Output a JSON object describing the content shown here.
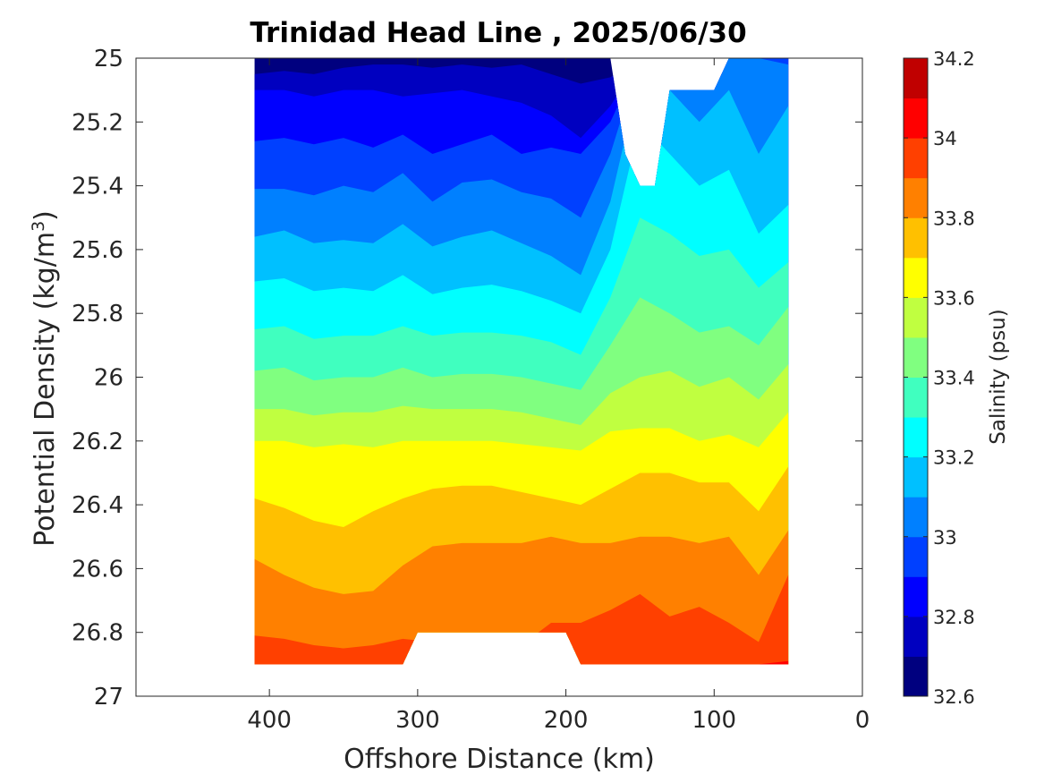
{
  "chart_data": {
    "type": "heatmap",
    "subtype": "filled-contour",
    "title": "Trinidad Head Line , 2025/06/30",
    "xlabel": "Offshore Distance (km)",
    "ylabel_main": "Potential Density (kg/m",
    "ylabel_sup": "3",
    "ylabel_close": ")",
    "colorbar_label": "Salinity (psu)",
    "x_reversed": true,
    "y_reversed": true,
    "xlim": [
      0,
      490
    ],
    "ylim": [
      25,
      27
    ],
    "x_ticks": [
      400,
      300,
      200,
      100,
      0
    ],
    "y_ticks": [
      25,
      25.2,
      25.4,
      25.6,
      25.8,
      26,
      26.2,
      26.4,
      26.6,
      26.8,
      27
    ],
    "y_tick_labels": [
      "25",
      "25.2",
      "25.4",
      "25.6",
      "25.8",
      "26",
      "26.2",
      "26.4",
      "26.6",
      "26.8",
      "27"
    ],
    "colorbar_range": [
      32.6,
      34.2
    ],
    "colorbar_ticks": [
      "34.2",
      "34",
      "33.8",
      "33.6",
      "33.4",
      "33.2",
      "33",
      "32.8",
      "32.6"
    ],
    "colorbar_tick_values": [
      34.2,
      34,
      33.8,
      33.6,
      33.4,
      33.2,
      33,
      32.8,
      32.6
    ],
    "contour_step": 0.1,
    "colormap": [
      "#00007F",
      "#0000C0",
      "#0000FF",
      "#0040FF",
      "#0080FF",
      "#00C0FF",
      "#00FFFF",
      "#40FFBF",
      "#80FF80",
      "#C0FF40",
      "#FFFF00",
      "#FFC000",
      "#FF8000",
      "#FF4000",
      "#FF0000",
      "#C00000"
    ],
    "x_stations_km": [
      410,
      390,
      370,
      350,
      330,
      310,
      290,
      270,
      250,
      230,
      210,
      190,
      170,
      150,
      130,
      110,
      90,
      70,
      50
    ],
    "station_depth_limits": [
      {
        "x": 410,
        "y_min": 25.0,
        "y_max": 26.9
      },
      {
        "x": 390,
        "y_min": 25.0,
        "y_max": 26.9
      },
      {
        "x": 370,
        "y_min": 25.0,
        "y_max": 26.9
      },
      {
        "x": 350,
        "y_min": 25.0,
        "y_max": 26.9
      },
      {
        "x": 330,
        "y_min": 25.0,
        "y_max": 26.9
      },
      {
        "x": 310,
        "y_min": 25.0,
        "y_max": 26.9
      },
      {
        "x": 300,
        "y_min": 25.0,
        "y_max": 26.8
      },
      {
        "x": 200,
        "y_min": 25.0,
        "y_max": 26.8
      },
      {
        "x": 190,
        "y_min": 25.0,
        "y_max": 26.9
      },
      {
        "x": 170,
        "y_min": 25.0,
        "y_max": 26.9
      },
      {
        "x": 160,
        "y_min": 25.3,
        "y_max": 26.9
      },
      {
        "x": 150,
        "y_min": 25.4,
        "y_max": 26.9
      },
      {
        "x": 140,
        "y_min": 25.4,
        "y_max": 26.9
      },
      {
        "x": 130,
        "y_min": 25.1,
        "y_max": 26.9
      },
      {
        "x": 100,
        "y_min": 25.1,
        "y_max": 26.9
      },
      {
        "x": 90,
        "y_min": 25.0,
        "y_max": 26.9
      },
      {
        "x": 50,
        "y_min": 25.0,
        "y_max": 26.9
      }
    ],
    "contour_bands_depth": [
      {
        "level": 32.7,
        "y": [
          25.05,
          25.04,
          25.05,
          25.03,
          25.02,
          25.02,
          25.03,
          25.02,
          25.03,
          25.02,
          25.05,
          25.08,
          25.06,
          25.0,
          25.0,
          25.0,
          25.0,
          25.0,
          25.0
        ]
      },
      {
        "level": 32.8,
        "y": [
          25.1,
          25.1,
          25.12,
          25.1,
          25.1,
          25.12,
          25.11,
          25.1,
          25.12,
          25.14,
          25.18,
          25.25,
          25.15,
          25.0,
          25.0,
          25.0,
          25.0,
          25.0,
          25.0
        ]
      },
      {
        "level": 32.9,
        "y": [
          25.26,
          25.25,
          25.27,
          25.25,
          25.28,
          25.24,
          25.3,
          25.27,
          25.24,
          25.3,
          25.28,
          25.3,
          25.2,
          25.0,
          25.0,
          25.0,
          25.0,
          25.0,
          25.0
        ]
      },
      {
        "level": 33.0,
        "y": [
          25.41,
          25.41,
          25.43,
          25.4,
          25.42,
          25.36,
          25.45,
          25.39,
          25.38,
          25.42,
          25.44,
          25.5,
          25.3,
          25.0,
          25.0,
          25.0,
          25.0,
          25.0,
          25.02
        ]
      },
      {
        "level": 33.1,
        "y": [
          25.56,
          25.54,
          25.58,
          25.57,
          25.58,
          25.52,
          25.59,
          25.56,
          25.54,
          25.58,
          25.62,
          25.68,
          25.45,
          25.05,
          25.1,
          25.2,
          25.1,
          25.3,
          25.15
        ]
      },
      {
        "level": 33.2,
        "y": [
          25.7,
          25.69,
          25.73,
          25.72,
          25.73,
          25.68,
          25.74,
          25.72,
          25.71,
          25.73,
          25.76,
          25.8,
          25.6,
          25.2,
          25.3,
          25.4,
          25.35,
          25.55,
          25.46
        ]
      },
      {
        "level": 33.3,
        "y": [
          25.85,
          25.84,
          25.88,
          25.87,
          25.87,
          25.84,
          25.87,
          25.86,
          25.86,
          25.87,
          25.89,
          25.93,
          25.75,
          25.5,
          25.55,
          25.62,
          25.6,
          25.72,
          25.64
        ]
      },
      {
        "level": 33.4,
        "y": [
          25.98,
          25.97,
          26.01,
          26.0,
          26.0,
          25.97,
          26.0,
          25.99,
          25.99,
          26.0,
          26.02,
          26.04,
          25.9,
          25.75,
          25.8,
          25.86,
          25.84,
          25.9,
          25.78
        ]
      },
      {
        "level": 33.5,
        "y": [
          26.1,
          26.1,
          26.12,
          26.11,
          26.11,
          26.09,
          26.1,
          26.1,
          26.1,
          26.11,
          26.13,
          26.15,
          26.05,
          26.0,
          25.98,
          26.03,
          26.0,
          26.07,
          25.96
        ]
      },
      {
        "level": 33.6,
        "y": [
          26.2,
          26.2,
          26.22,
          26.21,
          26.22,
          26.2,
          26.2,
          26.2,
          26.2,
          26.21,
          26.22,
          26.23,
          26.17,
          26.16,
          26.16,
          26.2,
          26.18,
          26.22,
          26.11
        ]
      },
      {
        "level": 33.7,
        "y": [
          26.38,
          26.41,
          26.45,
          26.47,
          26.42,
          26.38,
          26.35,
          26.34,
          26.34,
          26.36,
          26.38,
          26.4,
          26.35,
          26.3,
          26.3,
          26.33,
          26.33,
          26.42,
          26.28
        ]
      },
      {
        "level": 33.8,
        "y": [
          26.57,
          26.62,
          26.66,
          26.68,
          26.67,
          26.59,
          26.53,
          26.52,
          26.52,
          26.52,
          26.5,
          26.52,
          26.52,
          26.5,
          26.5,
          26.52,
          26.5,
          26.62,
          26.48
        ]
      },
      {
        "level": 33.9,
        "y": [
          26.81,
          26.82,
          26.84,
          26.85,
          26.84,
          26.82,
          26.83,
          26.84,
          26.83,
          26.84,
          26.77,
          26.77,
          26.73,
          26.68,
          26.75,
          26.72,
          26.77,
          26.83,
          26.62
        ]
      },
      {
        "level": 34.0,
        "y": [
          26.9,
          26.9,
          26.9,
          26.9,
          26.9,
          26.9,
          26.9,
          26.9,
          26.9,
          26.9,
          26.9,
          26.9,
          26.9,
          26.9,
          26.9,
          26.9,
          26.9,
          26.9,
          26.89
        ]
      }
    ]
  }
}
